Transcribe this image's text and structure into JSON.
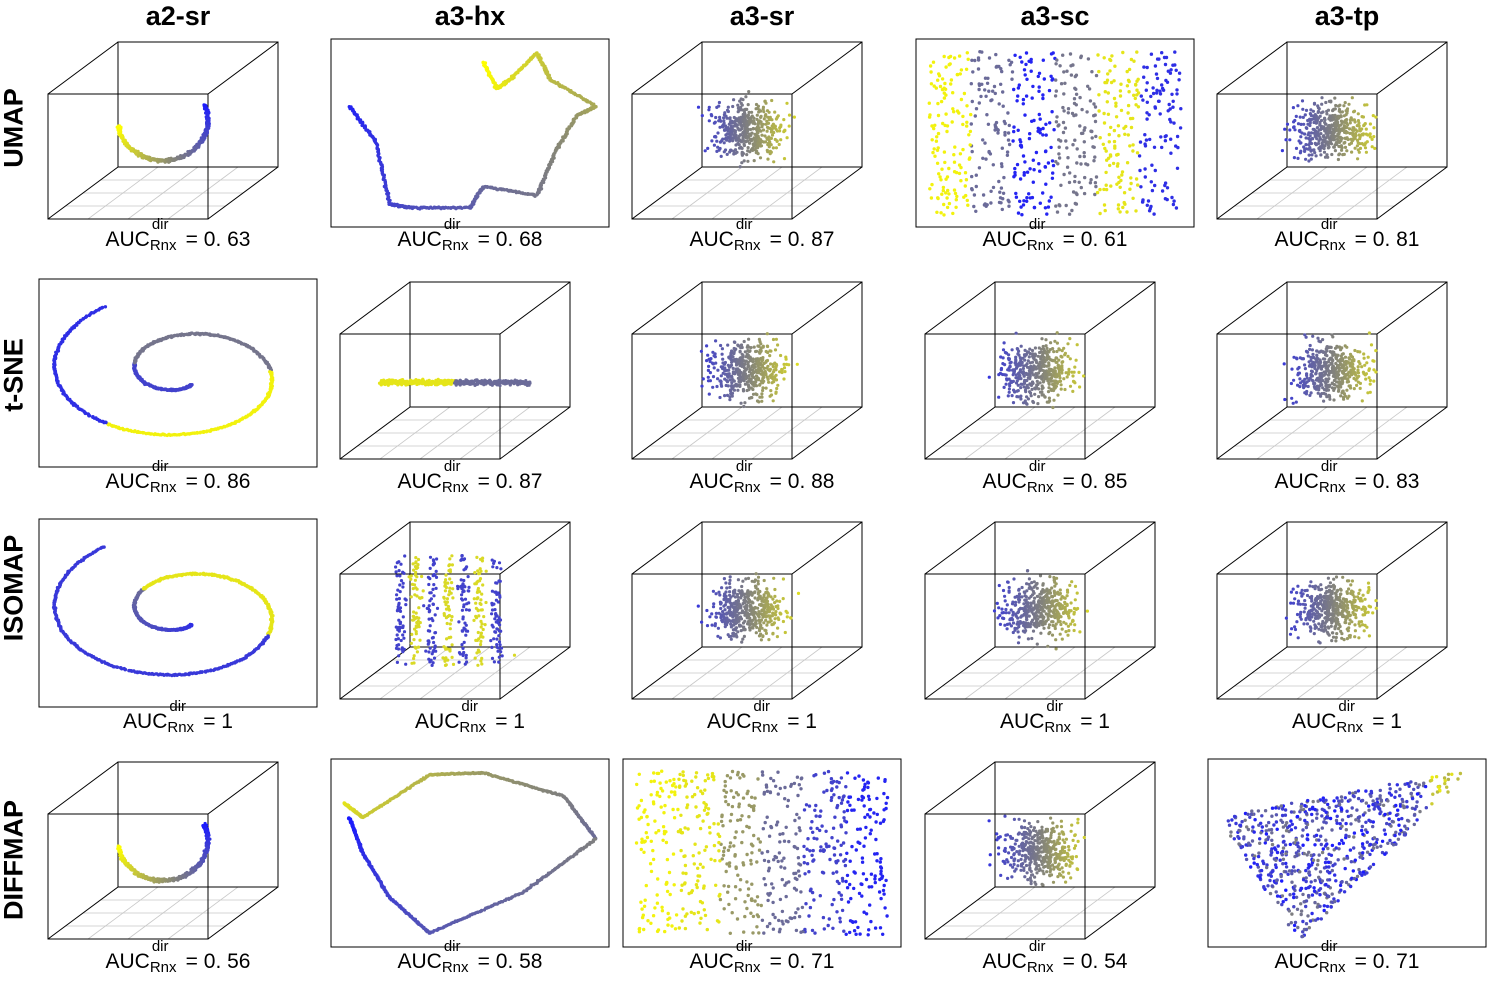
{
  "figure": {
    "columns": [
      "a2-sr",
      "a3-hx",
      "a3-sr",
      "a3-sc",
      "a3-tp"
    ],
    "rows": [
      "UMAP",
      "t-SNE",
      "ISOMAP",
      "DIFFMAP"
    ],
    "metric": {
      "base": "AUC",
      "superscript": "dir",
      "subscript": "Rnx"
    },
    "colors": {
      "low": "#1a1aff",
      "mid": "#7f7f7f",
      "high": "#ffff00"
    }
  },
  "chart_data": {
    "type": "scatter",
    "title": "",
    "description_columns": [
      "a2-sr",
      "a3-hx",
      "a3-sr",
      "a3-sc",
      "a3-tp"
    ],
    "panels": [
      {
        "row": "UMAP",
        "column": "a2-sr",
        "view": "3d",
        "auc": "0. 63"
      },
      {
        "row": "UMAP",
        "column": "a3-hx",
        "view": "2d",
        "auc": "0. 68"
      },
      {
        "row": "UMAP",
        "column": "a3-sr",
        "view": "3d",
        "auc": "0. 87"
      },
      {
        "row": "UMAP",
        "column": "a3-sc",
        "view": "2d",
        "auc": "0. 61"
      },
      {
        "row": "UMAP",
        "column": "a3-tp",
        "view": "3d",
        "auc": "0. 81"
      },
      {
        "row": "t-SNE",
        "column": "a2-sr",
        "view": "2d",
        "auc": "0. 86"
      },
      {
        "row": "t-SNE",
        "column": "a3-hx",
        "view": "3d",
        "auc": "0. 87"
      },
      {
        "row": "t-SNE",
        "column": "a3-sr",
        "view": "3d",
        "auc": "0. 88"
      },
      {
        "row": "t-SNE",
        "column": "a3-sc",
        "view": "3d",
        "auc": "0. 85"
      },
      {
        "row": "t-SNE",
        "column": "a3-tp",
        "view": "3d",
        "auc": "0. 83"
      },
      {
        "row": "ISOMAP",
        "column": "a2-sr",
        "view": "2d",
        "auc": "1"
      },
      {
        "row": "ISOMAP",
        "column": "a3-hx",
        "view": "3d",
        "auc": "1"
      },
      {
        "row": "ISOMAP",
        "column": "a3-sr",
        "view": "3d",
        "auc": "1"
      },
      {
        "row": "ISOMAP",
        "column": "a3-sc",
        "view": "3d",
        "auc": "1"
      },
      {
        "row": "ISOMAP",
        "column": "a3-tp",
        "view": "3d",
        "auc": "1"
      },
      {
        "row": "DIFFMAP",
        "column": "a2-sr",
        "view": "3d",
        "auc": "0. 56"
      },
      {
        "row": "DIFFMAP",
        "column": "a3-hx",
        "view": "2d",
        "auc": "0. 58"
      },
      {
        "row": "DIFFMAP",
        "column": "a3-sr",
        "view": "2d",
        "auc": "0. 71"
      },
      {
        "row": "DIFFMAP",
        "column": "a3-sc",
        "view": "3d",
        "auc": "0. 54"
      },
      {
        "row": "DIFFMAP",
        "column": "a3-tp",
        "view": "2d",
        "auc": "0. 71"
      }
    ]
  }
}
